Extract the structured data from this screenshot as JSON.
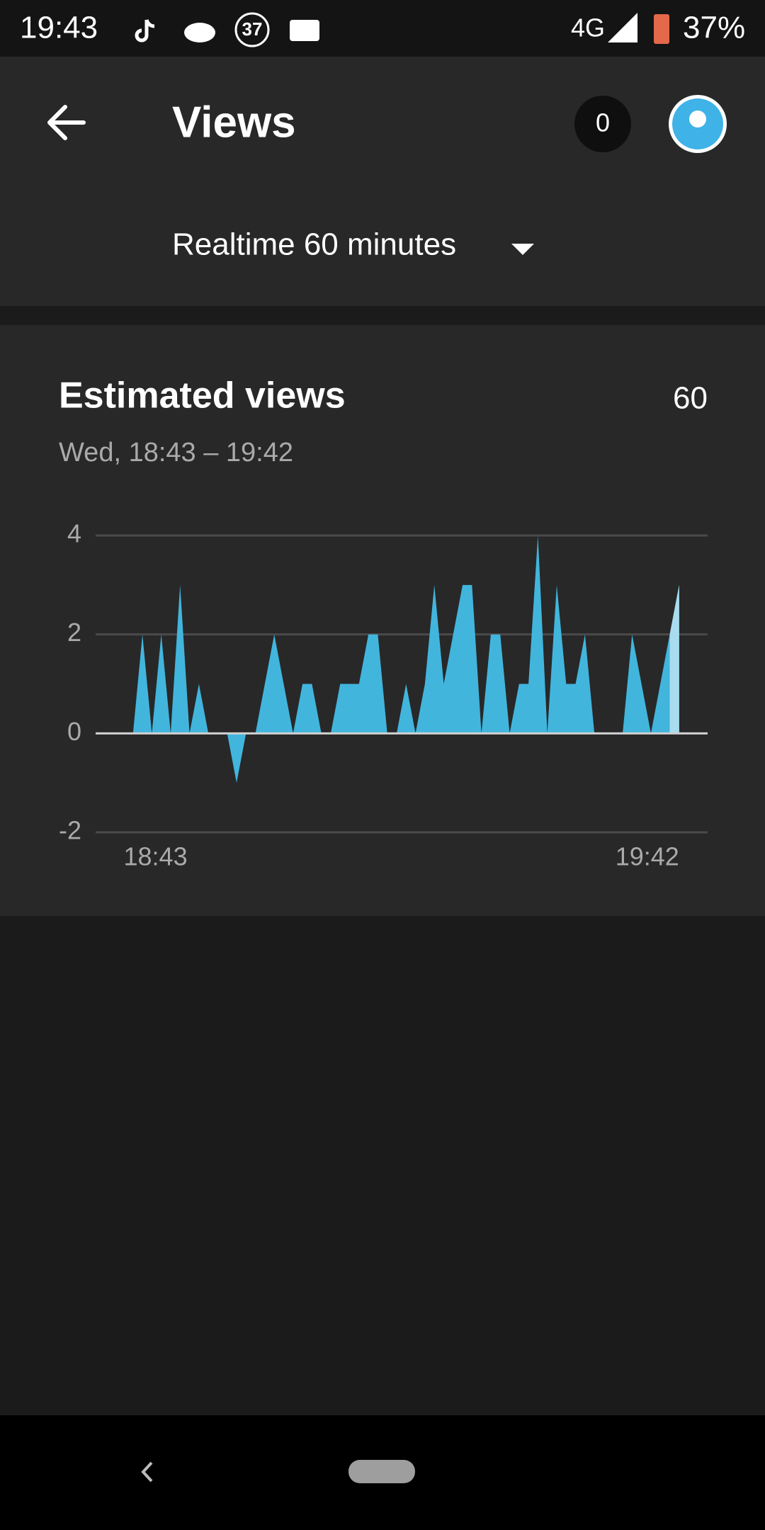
{
  "status_bar": {
    "time": "19:43",
    "notification_count": "37",
    "network": "4G",
    "battery": "37%"
  },
  "app_bar": {
    "title": "Views",
    "notification_badge": "0"
  },
  "period_selector": {
    "label": "Realtime 60 minutes"
  },
  "card": {
    "title": "Estimated views",
    "total": 60,
    "date_range": "Wed, 18:43 – 19:42"
  },
  "chart_data": {
    "type": "area",
    "categories": [
      "18:43",
      null,
      null,
      null,
      null,
      null,
      null,
      null,
      null,
      null,
      null,
      null,
      null,
      null,
      null,
      null,
      null,
      null,
      null,
      null,
      null,
      null,
      null,
      null,
      null,
      null,
      null,
      null,
      null,
      null,
      null,
      null,
      null,
      null,
      null,
      null,
      null,
      null,
      null,
      null,
      null,
      null,
      null,
      null,
      null,
      null,
      null,
      null,
      null,
      null,
      null,
      null,
      null,
      null,
      null,
      null,
      null,
      null,
      null,
      "19:42"
    ],
    "values": [
      0,
      0,
      2,
      0,
      2,
      0,
      3,
      0,
      1,
      0,
      0,
      0,
      -1,
      0,
      0,
      1,
      2,
      1,
      0,
      1,
      1,
      0,
      0,
      1,
      1,
      1,
      2,
      2,
      0,
      0,
      1,
      0,
      1,
      3,
      1,
      2,
      3,
      3,
      0,
      2,
      2,
      0,
      1,
      1,
      4,
      0,
      3,
      1,
      1,
      2,
      0,
      0,
      0,
      0,
      2,
      1,
      0,
      1,
      2,
      3
    ],
    "color": "#42b5dd",
    "last_segment_color": "#a9dcee",
    "ylim": [
      -2,
      4
    ],
    "yticks": [
      -2,
      0,
      2,
      4
    ],
    "grid": true
  }
}
